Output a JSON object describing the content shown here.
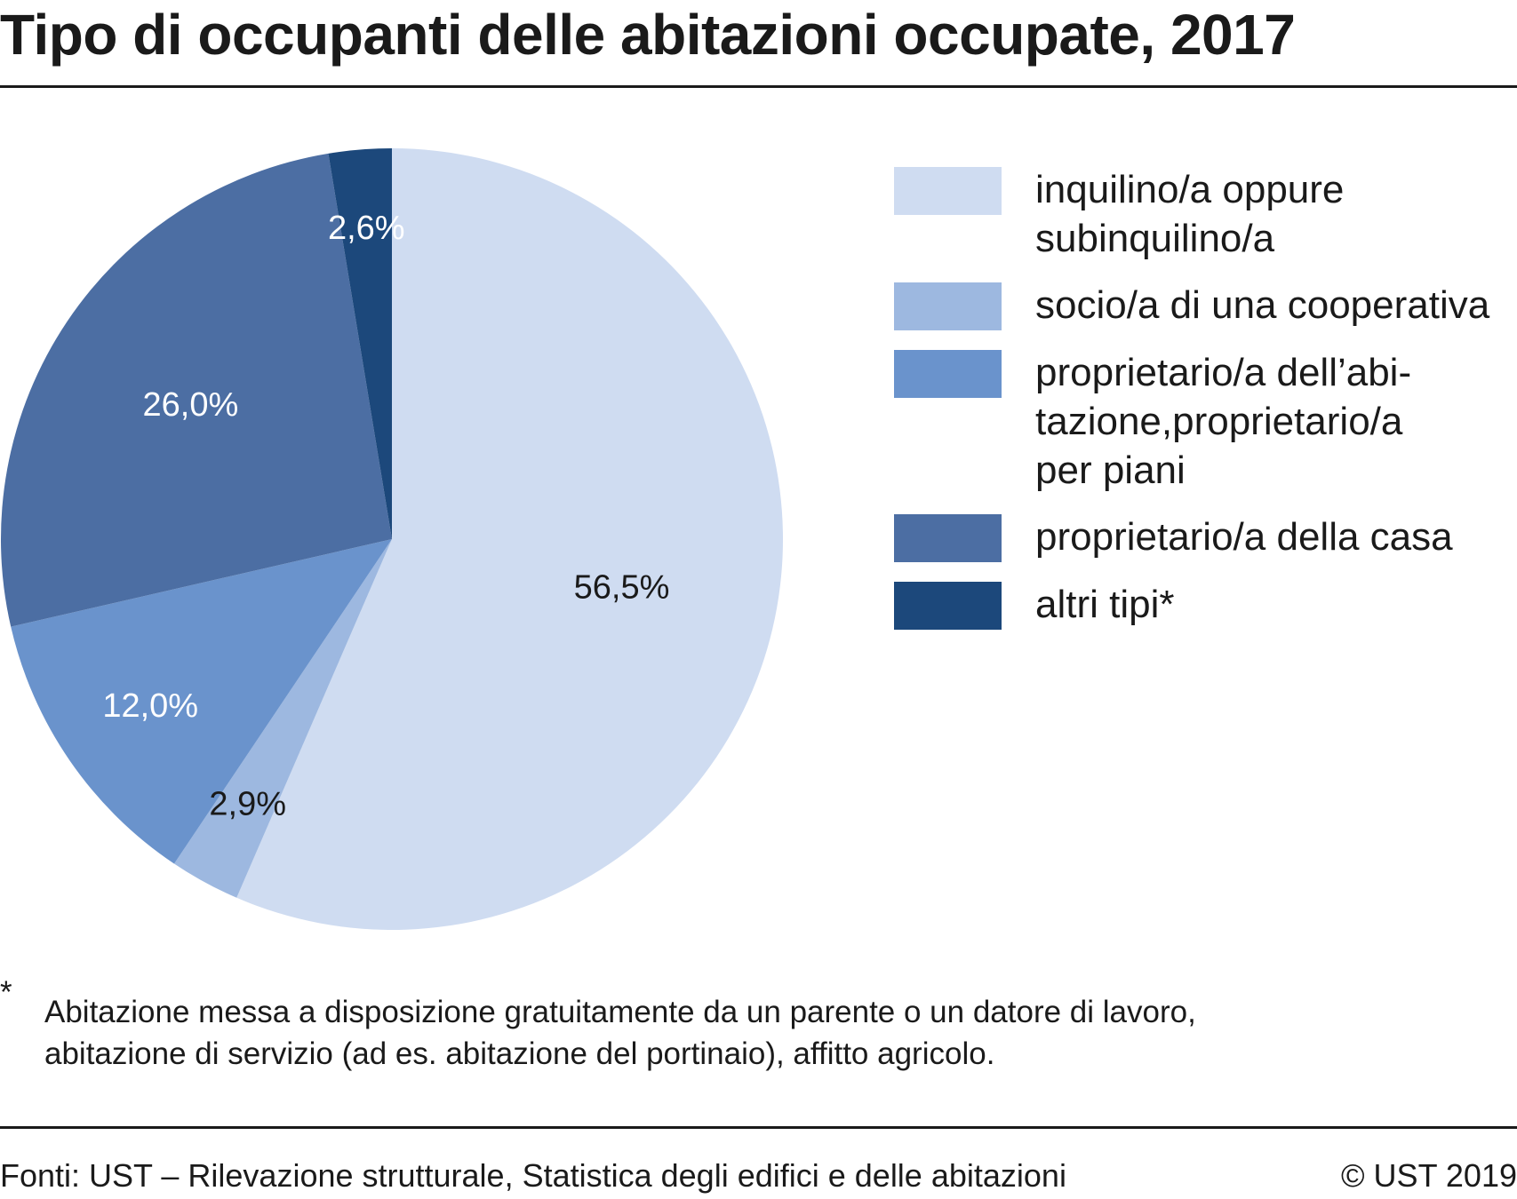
{
  "title": "Tipo di occupanti delle abitazioni occupate, 2017",
  "chart_data": {
    "type": "pie",
    "title": "Tipo di occupanti delle abitazioni occupate, 2017",
    "slices": [
      {
        "label": "inquilino/a oppure subinquilino/a",
        "value": 56.5,
        "display": "56,5%",
        "color": "#cfdcf1",
        "label_color": "#1a1a1a"
      },
      {
        "label": "socio/a di una cooperativa",
        "value": 2.9,
        "display": "2,9%",
        "color": "#9db8e0",
        "label_color": "#1a1a1a"
      },
      {
        "label": "proprietario/a dell’abitazione,proprietario/a per piani",
        "value": 12.0,
        "display": "12,0%",
        "color": "#6a93cc",
        "label_color": "#ffffff"
      },
      {
        "label": "proprietario/a della casa",
        "value": 26.0,
        "display": "26,0%",
        "color": "#4c6ea3",
        "label_color": "#ffffff"
      },
      {
        "label": "altri tipi*",
        "value": 2.6,
        "display": "2,6%",
        "color": "#1c487b",
        "label_color": "#ffffff"
      }
    ],
    "legend_position": "right"
  },
  "legend": [
    {
      "text": "inquilino/a oppure\nsubinquilino/a",
      "color": "#cfdcf1"
    },
    {
      "text": "socio/a di una cooperativa",
      "color": "#9db8e0"
    },
    {
      "text": "proprietario/a dell’abi-\ntazione,proprietario/a\nper piani",
      "color": "#6a93cc"
    },
    {
      "text": "proprietario/a della casa",
      "color": "#4c6ea3"
    },
    {
      "text": "altri tipi*",
      "color": "#1c487b"
    }
  ],
  "footnote": {
    "mark": "*",
    "text": "Abitazione messa a disposizione gratuitamente da un parente o un datore di lavoro,\nabitazione di servizio (ad es. abitazione del portinaio), affitto agricolo."
  },
  "source": "Fonti: UST – Rilevazione strutturale, Statistica degli edifici e delle abitazioni",
  "copyright": "© UST 2019"
}
